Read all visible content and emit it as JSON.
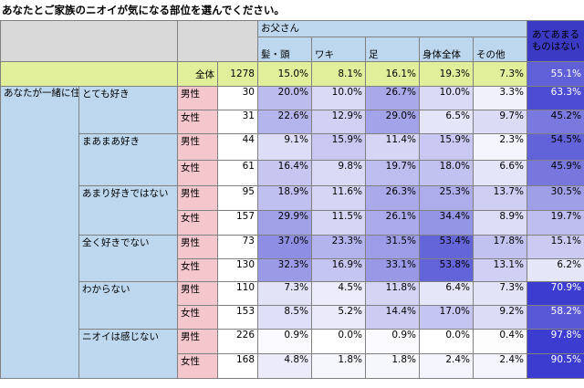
{
  "title": "あなたとご家族のニオイが気になる部位を選んでください。",
  "header": {
    "group_label": "お父さん",
    "columns": [
      "髪・頭",
      "ワキ",
      "足",
      "身体全体",
      "その他",
      "あてあまるものはない"
    ],
    "last_column_lines": [
      "あてあまる",
      "ものはない"
    ]
  },
  "side_question": "あなたが一緒に住んでいるご家族のニオイについて、あてはまるものを選んでください。 / お父さん",
  "chart_data": {
    "type": "table",
    "title": "あなたとご家族のニオイが気になる部位を選んでください。",
    "columns": [
      "髪・頭",
      "ワキ",
      "足",
      "身体全体",
      "その他",
      "あてあまるものはない"
    ],
    "total": {
      "label": "全体",
      "n": "1278",
      "values": [
        "15.0%",
        "8.1%",
        "16.1%",
        "19.3%",
        "7.3%",
        "55.1%"
      ]
    },
    "groups": [
      {
        "label": "とても好き",
        "rows": [
          {
            "gender": "男性",
            "n": "30",
            "values": [
              "20.0%",
              "10.0%",
              "26.7%",
              "10.0%",
              "3.3%",
              "63.3%"
            ]
          },
          {
            "gender": "女性",
            "n": "31",
            "values": [
              "22.6%",
              "12.9%",
              "29.0%",
              "6.5%",
              "9.7%",
              "45.2%"
            ]
          }
        ]
      },
      {
        "label": "まあまあ好き",
        "rows": [
          {
            "gender": "男性",
            "n": "44",
            "values": [
              "9.1%",
              "15.9%",
              "11.4%",
              "15.9%",
              "2.3%",
              "54.5%"
            ]
          },
          {
            "gender": "女性",
            "n": "61",
            "values": [
              "16.4%",
              "9.8%",
              "19.7%",
              "18.0%",
              "6.6%",
              "45.9%"
            ]
          }
        ]
      },
      {
        "label": "あまり好きではない",
        "rows": [
          {
            "gender": "男性",
            "n": "95",
            "values": [
              "18.9%",
              "11.6%",
              "26.3%",
              "25.3%",
              "13.7%",
              "30.5%"
            ]
          },
          {
            "gender": "女性",
            "n": "157",
            "values": [
              "29.9%",
              "11.5%",
              "26.1%",
              "34.4%",
              "8.9%",
              "19.7%"
            ]
          }
        ]
      },
      {
        "label": "全く好きでない",
        "rows": [
          {
            "gender": "男性",
            "n": "73",
            "values": [
              "37.0%",
              "23.3%",
              "31.5%",
              "53.4%",
              "17.8%",
              "15.1%"
            ]
          },
          {
            "gender": "女性",
            "n": "130",
            "values": [
              "32.3%",
              "16.9%",
              "33.1%",
              "53.8%",
              "13.1%",
              "6.2%"
            ]
          }
        ]
      },
      {
        "label": "わからない",
        "rows": [
          {
            "gender": "男性",
            "n": "110",
            "values": [
              "7.3%",
              "4.5%",
              "11.8%",
              "6.4%",
              "7.3%",
              "70.9%"
            ]
          },
          {
            "gender": "女性",
            "n": "153",
            "values": [
              "8.5%",
              "5.2%",
              "14.4%",
              "17.0%",
              "9.2%",
              "58.2%"
            ]
          }
        ]
      },
      {
        "label": "ニオイは感じない",
        "rows": [
          {
            "gender": "男性",
            "n": "226",
            "values": [
              "0.9%",
              "0.0%",
              "0.9%",
              "0.0%",
              "0.4%",
              "97.8%"
            ]
          },
          {
            "gender": "女性",
            "n": "168",
            "values": [
              "4.8%",
              "1.8%",
              "1.8%",
              "2.4%",
              "2.4%",
              "90.5%"
            ]
          }
        ]
      }
    ],
    "colors": {
      "heat_low": "#ffffff",
      "heat_high": "#3c3cd0",
      "total_row": "#e2ef9a",
      "label_blue": "#bdd7ee",
      "gender_pink": "#f4c7cd",
      "header_gray": "#d9d9d9"
    }
  }
}
